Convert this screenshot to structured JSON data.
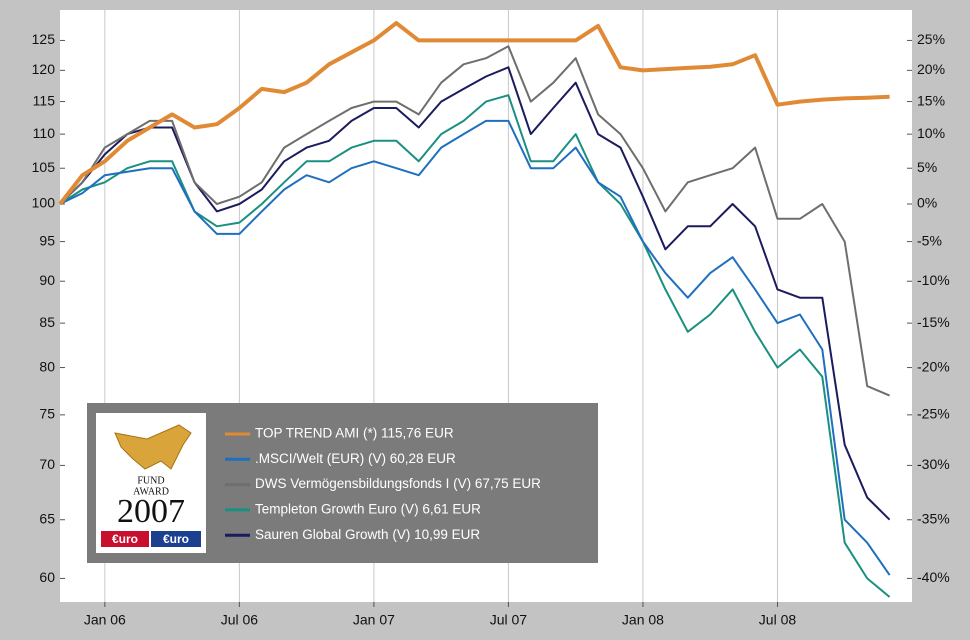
{
  "chart_data": {
    "type": "line",
    "x": [
      "2005-11",
      "2005-12",
      "2006-01",
      "2006-02",
      "2006-03",
      "2006-04",
      "2006-05",
      "2006-06",
      "2006-07",
      "2006-08",
      "2006-09",
      "2006-10",
      "2006-11",
      "2006-12",
      "2007-01",
      "2007-02",
      "2007-03",
      "2007-04",
      "2007-05",
      "2007-06",
      "2007-07",
      "2007-08",
      "2007-09",
      "2007-10",
      "2007-11",
      "2007-12",
      "2008-01",
      "2008-02",
      "2008-03",
      "2008-04",
      "2008-05",
      "2008-06",
      "2008-07",
      "2008-08",
      "2008-09",
      "2008-10",
      "2008-11",
      "2008-12"
    ],
    "series": [
      {
        "name": "TOP TREND AMI (*) 115,76 EUR",
        "color": "#e08a35",
        "values": [
          100,
          104,
          106,
          109,
          111,
          113,
          111,
          111.5,
          114,
          117,
          116.5,
          118,
          121,
          123,
          125,
          128,
          125,
          125,
          125,
          125,
          125,
          125,
          125,
          125,
          127.5,
          120.5,
          120,
          120.2,
          120.4,
          120.6,
          121,
          122.5,
          114.5,
          115,
          115.3,
          115.5,
          115.6,
          115.76
        ]
      },
      {
        "name": ".MSCI/Welt (EUR) (V) 60,28 EUR",
        "color": "#1f6fc0",
        "values": [
          100,
          101.5,
          104,
          104.5,
          105,
          105,
          99,
          96,
          96,
          99,
          102,
          104,
          103,
          105,
          106,
          105,
          104,
          108,
          110,
          112,
          112,
          105,
          105,
          108,
          103,
          101,
          95,
          91,
          88,
          91,
          93,
          89,
          85,
          86,
          82,
          65,
          63,
          60.28
        ]
      },
      {
        "name": "DWS Vermögensbildungsfonds I (V) 67,75 EUR",
        "color": "#6e6e6e",
        "values": [
          100,
          103,
          108,
          110,
          112,
          112,
          103,
          100,
          101,
          103,
          108,
          110,
          112,
          114,
          115,
          115,
          113,
          118,
          121,
          122,
          124,
          115,
          118,
          122,
          113,
          110,
          105,
          99,
          103,
          104,
          105,
          108,
          98,
          98,
          100,
          95,
          78,
          77
        ]
      },
      {
        "name": "Templeton Growth Euro (V) 6,61 EUR",
        "color": "#1a9080",
        "values": [
          100,
          102,
          103,
          105,
          106,
          106,
          99,
          97,
          97.5,
          100,
          103,
          106,
          106,
          108,
          109,
          109,
          106,
          110,
          112,
          115,
          116,
          106,
          106,
          110,
          103,
          100,
          95,
          89,
          84,
          86,
          89,
          84,
          80,
          82,
          79,
          63,
          60,
          58.5
        ]
      },
      {
        "name": "Sauren Global Growth (V) 10,99 EUR",
        "color": "#1b1b5e",
        "values": [
          100,
          103,
          107,
          110,
          111,
          111,
          103,
          99,
          100,
          102,
          106,
          108,
          109,
          112,
          114,
          114,
          111,
          115,
          117,
          119,
          120.5,
          110,
          114,
          118,
          110,
          108,
          101,
          94,
          97,
          97,
          100,
          97,
          89,
          88,
          88,
          72,
          67,
          65
        ]
      }
    ],
    "xlim": [
      "2005-11",
      "2009-01"
    ],
    "xticks": [
      {
        "value": "2006-01",
        "label": "Jan 06"
      },
      {
        "value": "2006-07",
        "label": "Jul 06"
      },
      {
        "value": "2007-01",
        "label": "Jan 07"
      },
      {
        "value": "2007-07",
        "label": "Jul 07"
      },
      {
        "value": "2008-01",
        "label": "Jan 08"
      },
      {
        "value": "2008-07",
        "label": "Jul 08"
      }
    ],
    "ylim": [
      58.1,
      130.3
    ],
    "yscale": "log",
    "yticks": [
      60,
      65,
      70,
      75,
      80,
      85,
      90,
      95,
      100,
      105,
      110,
      115,
      120,
      125
    ],
    "y2lim": [
      -41.9,
      30.3
    ],
    "y2ticks": [
      {
        "value": -40,
        "label": "-40%"
      },
      {
        "value": -35,
        "label": "-35%"
      },
      {
        "value": -30,
        "label": "-30%"
      },
      {
        "value": -25,
        "label": "-25%"
      },
      {
        "value": -20,
        "label": "-20%"
      },
      {
        "value": -15,
        "label": "-15%"
      },
      {
        "value": -10,
        "label": "-10%"
      },
      {
        "value": -5,
        "label": "-5%"
      },
      {
        "value": 0,
        "label": "0%"
      },
      {
        "value": 5,
        "label": "5%"
      },
      {
        "value": 10,
        "label": "10%"
      },
      {
        "value": 15,
        "label": "15%"
      },
      {
        "value": 20,
        "label": "20%"
      },
      {
        "value": 25,
        "label": "25%"
      }
    ],
    "grid": "x",
    "legend": "lower-left",
    "badge": {
      "line1": "FUND",
      "line2": "AWARD",
      "year": "2007",
      "logo_left": "€uro",
      "logo_right": "€uro"
    }
  }
}
